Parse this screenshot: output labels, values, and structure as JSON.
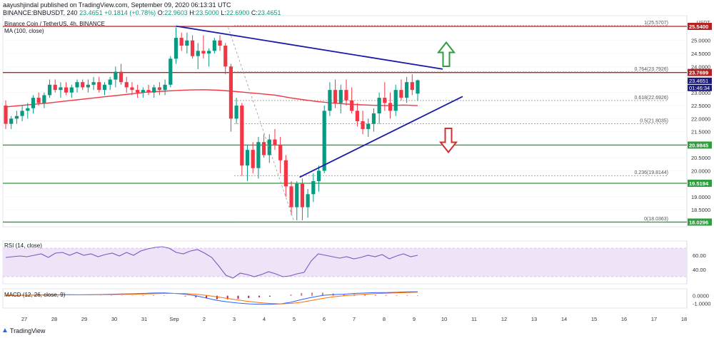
{
  "header": {
    "line1": "aayushjindal published on TradingView.com, September 09, 2020 06:13:31 UTC",
    "symbol": "BINANCE:BNBUSDT, 240",
    "price": "23.4651",
    "change": "+0.1814 (+0.78%)",
    "o_label": "O:",
    "o": "22.9603",
    "h_label": "H:",
    "h": "23.5000",
    "l_label": "L:",
    "l": "22.6900",
    "c_label": "C:",
    "c": "23.4651"
  },
  "legend": {
    "title": "Binance Coin / TetherUS, 4h, BINANCE",
    "ma": "MA (100, close)"
  },
  "rsi_label": "RSI (14, close)",
  "macd_label": "MACD (12, 26, close, 9)",
  "footer": {
    "brand": "TradingView",
    "icon": "tradingview-logo-icon"
  },
  "colors": {
    "up": "#089981",
    "down": "#f23645",
    "ma": "#f23645",
    "trend": "#1a1aa8",
    "hline_red": "#b22222",
    "hline_green": "#2e9e3e",
    "rsi": "#7e57c2",
    "rsi_band": "#efe3f7",
    "macd": "#2962ff",
    "signal": "#ff6d00"
  },
  "chart_data": {
    "type": "candlestick",
    "axis_currency": "USDT",
    "ylim": [
      17.85,
      25.95
    ],
    "y_ticks": [
      "18.0000",
      "18.5000",
      "19.0000",
      "19.5000",
      "20.0000",
      "20.5000",
      "21.0000",
      "21.5000",
      "22.0000",
      "22.5000",
      "23.0000",
      "23.5000",
      "24.0000",
      "24.5000",
      "25.0000"
    ],
    "x_labels": [
      "27",
      "28",
      "29",
      "30",
      "31",
      "Sep",
      "2",
      "3",
      "4",
      "5",
      "6",
      "7",
      "8",
      "9",
      "10",
      "11",
      "12",
      "13",
      "14",
      "15",
      "16",
      "17",
      "18"
    ],
    "candles": [
      [
        22.5,
        22.7,
        21.6,
        21.8
      ],
      [
        21.8,
        22.1,
        21.6,
        22.0
      ],
      [
        22.0,
        22.3,
        21.8,
        22.1
      ],
      [
        22.1,
        22.5,
        21.9,
        22.3
      ],
      [
        22.3,
        22.6,
        22.0,
        22.4
      ],
      [
        22.4,
        22.9,
        22.2,
        22.8
      ],
      [
        22.8,
        23.0,
        22.5,
        22.6
      ],
      [
        22.6,
        23.0,
        22.4,
        22.9
      ],
      [
        22.9,
        23.5,
        22.8,
        23.3
      ],
      [
        23.3,
        23.5,
        23.0,
        23.1
      ],
      [
        23.1,
        23.4,
        22.8,
        23.2
      ],
      [
        23.2,
        23.4,
        22.9,
        23.0
      ],
      [
        23.0,
        23.3,
        22.8,
        23.2
      ],
      [
        23.2,
        23.5,
        23.0,
        23.4
      ],
      [
        23.4,
        23.5,
        23.1,
        23.2
      ],
      [
        23.2,
        23.5,
        23.0,
        23.3
      ],
      [
        23.3,
        23.6,
        23.1,
        23.4
      ],
      [
        23.4,
        23.6,
        23.0,
        23.1
      ],
      [
        23.1,
        23.4,
        22.9,
        23.3
      ],
      [
        23.3,
        23.6,
        23.1,
        23.5
      ],
      [
        23.5,
        24.0,
        23.2,
        23.8
      ],
      [
        23.8,
        24.1,
        23.3,
        23.4
      ],
      [
        23.4,
        23.6,
        23.0,
        23.2
      ],
      [
        23.2,
        23.4,
        22.9,
        23.1
      ],
      [
        23.1,
        23.3,
        22.8,
        23.0
      ],
      [
        23.0,
        23.2,
        22.8,
        23.1
      ],
      [
        23.1,
        23.3,
        22.9,
        23.0
      ],
      [
        23.0,
        23.3,
        22.8,
        23.2
      ],
      [
        23.2,
        23.4,
        22.9,
        23.1
      ],
      [
        23.1,
        23.5,
        22.9,
        23.3
      ],
      [
        23.3,
        24.4,
        23.2,
        24.3
      ],
      [
        24.3,
        25.5,
        24.1,
        25.1
      ],
      [
        25.1,
        25.3,
        24.6,
        24.8
      ],
      [
        24.8,
        25.3,
        24.5,
        25.0
      ],
      [
        25.0,
        25.2,
        24.3,
        24.4
      ],
      [
        24.4,
        24.9,
        23.9,
        24.6
      ],
      [
        24.6,
        25.2,
        24.3,
        24.5
      ],
      [
        24.5,
        24.7,
        24.0,
        24.6
      ],
      [
        24.6,
        25.1,
        24.5,
        25.0
      ],
      [
        25.0,
        25.2,
        24.6,
        24.8
      ],
      [
        24.8,
        24.9,
        23.7,
        24.0
      ],
      [
        24.0,
        24.1,
        21.5,
        22.0
      ],
      [
        22.0,
        22.8,
        21.8,
        22.5
      ],
      [
        22.5,
        22.6,
        19.8,
        20.2
      ],
      [
        20.2,
        21.0,
        19.6,
        20.8
      ],
      [
        20.8,
        21.1,
        19.9,
        20.1
      ],
      [
        20.1,
        21.3,
        19.7,
        21.1
      ],
      [
        21.1,
        21.4,
        20.5,
        20.6
      ],
      [
        20.6,
        21.4,
        20.3,
        21.2
      ],
      [
        21.2,
        21.6,
        20.8,
        21.0
      ],
      [
        21.0,
        21.3,
        19.9,
        20.4
      ],
      [
        20.4,
        20.6,
        19.0,
        19.4
      ],
      [
        19.4,
        19.6,
        18.3,
        18.6
      ],
      [
        18.6,
        19.6,
        18.1,
        19.5
      ],
      [
        19.5,
        19.7,
        18.1,
        18.6
      ],
      [
        18.6,
        19.3,
        18.2,
        19.1
      ],
      [
        19.1,
        19.9,
        18.8,
        19.6
      ],
      [
        19.6,
        20.2,
        19.2,
        20.0
      ],
      [
        20.0,
        22.5,
        19.9,
        22.3
      ],
      [
        22.3,
        23.4,
        22.1,
        23.1
      ],
      [
        23.1,
        23.5,
        22.4,
        22.6
      ],
      [
        22.6,
        23.3,
        22.2,
        23.1
      ],
      [
        23.1,
        23.5,
        22.5,
        22.7
      ],
      [
        22.7,
        23.2,
        22.2,
        22.3
      ],
      [
        22.3,
        22.6,
        21.7,
        21.9
      ],
      [
        21.9,
        22.3,
        21.4,
        21.6
      ],
      [
        21.6,
        22.0,
        21.3,
        21.8
      ],
      [
        21.8,
        22.4,
        21.5,
        22.2
      ],
      [
        22.2,
        23.0,
        21.8,
        22.8
      ],
      [
        22.8,
        23.4,
        22.3,
        22.6
      ],
      [
        22.6,
        23.0,
        22.0,
        22.3
      ],
      [
        22.3,
        23.3,
        22.1,
        23.1
      ],
      [
        23.1,
        23.5,
        22.7,
        22.8
      ],
      [
        22.8,
        23.6,
        22.6,
        23.4
      ],
      [
        23.4,
        23.7,
        22.9,
        23.1
      ],
      [
        22.96,
        23.5,
        22.69,
        23.47
      ]
    ],
    "ma100": [
      22.45,
      22.5,
      22.55,
      22.6,
      22.66,
      22.72,
      22.78,
      22.84,
      22.9,
      22.96,
      23.02,
      23.05,
      23.08,
      23.1,
      23.11,
      23.09,
      23.05,
      23.0,
      22.95,
      22.9,
      22.8,
      22.72,
      22.65,
      22.6,
      22.56,
      22.53,
      22.51,
      22.5,
      22.52,
      22.5
    ],
    "resistance_lines": [
      {
        "value": 25.54,
        "label": "25.5400",
        "color": "#b22222"
      },
      {
        "value": 23.7699,
        "label": "23.7699",
        "color": "#b22222"
      }
    ],
    "support_lines": [
      {
        "value": 20.9845,
        "label": "20.9845",
        "color": "#2e9e3e"
      },
      {
        "value": 19.5194,
        "label": "19.5194",
        "color": "#2e9e3e"
      },
      {
        "value": 18.0296,
        "label": "18.0296",
        "color": "#2e9e3e"
      }
    ],
    "fib_levels": [
      {
        "value": 25.5707,
        "label": "1(25.5707)"
      },
      {
        "value": 23.7926,
        "label": "0.764(23.7926)"
      },
      {
        "value": 22.6926,
        "label": "0.618(22.6926)"
      },
      {
        "value": 21.8035,
        "label": "0.5(21.8035)"
      },
      {
        "value": 19.8144,
        "label": "0.236(19.8144)"
      },
      {
        "value": 18.0363,
        "label": "0(18.0363)"
      }
    ],
    "current_price_label": "23.4651",
    "countdown_label": "01:46:34",
    "rsi": {
      "axis_ticks": [
        "60.00",
        "40.00"
      ],
      "ylim": [
        20,
        80
      ],
      "values": [
        57,
        58,
        59,
        58,
        60,
        62,
        57,
        63,
        64,
        60,
        64,
        60,
        62,
        58,
        61,
        63,
        59,
        64,
        60,
        66,
        69,
        71,
        72,
        70,
        64,
        62,
        66,
        68,
        63,
        57,
        45,
        32,
        28,
        35,
        33,
        30,
        33,
        37,
        34,
        30,
        31,
        34,
        36,
        52,
        62,
        60,
        58,
        56,
        58,
        55,
        57,
        60,
        58,
        61,
        55,
        59,
        62,
        58,
        60
      ],
      "band": [
        30,
        70
      ]
    },
    "macd": {
      "axis_ticks": [
        "0.0000",
        "-1.0000"
      ],
      "ylim": [
        -1.6,
        0.9
      ],
      "macd_line": [
        0.05,
        0.06,
        0.08,
        0.1,
        0.1,
        0.12,
        0.13,
        0.12,
        0.14,
        0.16,
        0.2,
        0.22,
        0.25,
        0.3,
        0.35,
        0.36,
        0.3,
        0.2,
        0.0,
        -0.3,
        -0.6,
        -0.8,
        -0.95,
        -1.05,
        -1.1,
        -1.12,
        -1.05,
        -0.85,
        -0.5,
        -0.2,
        0.05,
        0.15,
        0.2,
        0.3,
        0.35,
        0.4,
        0.42,
        0.45,
        0.5,
        0.52
      ],
      "signal_line": [
        0.03,
        0.04,
        0.06,
        0.08,
        0.09,
        0.1,
        0.11,
        0.11,
        0.12,
        0.13,
        0.15,
        0.17,
        0.2,
        0.22,
        0.26,
        0.3,
        0.3,
        0.28,
        0.2,
        0.05,
        -0.15,
        -0.35,
        -0.55,
        -0.75,
        -0.9,
        -1.0,
        -1.05,
        -1.0,
        -0.85,
        -0.6,
        -0.35,
        -0.15,
        0.0,
        0.1,
        0.2,
        0.28,
        0.33,
        0.38,
        0.42,
        0.46
      ],
      "histogram": [
        0.02,
        0.02,
        0.02,
        0.02,
        0.01,
        0.02,
        0.02,
        0.01,
        0.02,
        0.03,
        0.05,
        0.05,
        0.05,
        0.08,
        0.09,
        0.06,
        0.0,
        -0.08,
        -0.2,
        -0.35,
        -0.45,
        -0.45,
        -0.4,
        -0.3,
        -0.2,
        -0.12,
        0.0,
        0.15,
        0.35,
        0.4,
        0.4,
        0.3,
        0.2,
        0.2,
        0.15,
        0.12,
        0.09,
        0.07,
        0.08,
        0.06
      ]
    }
  }
}
